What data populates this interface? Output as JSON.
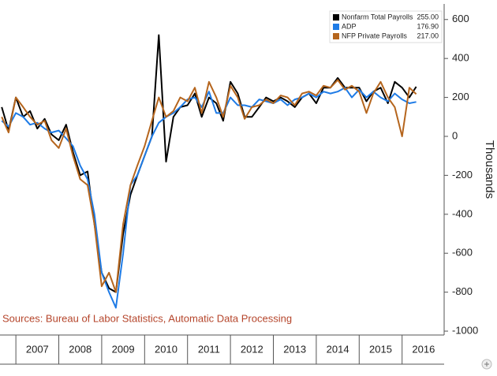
{
  "chart_data": {
    "type": "line",
    "y_label": "Thousands",
    "source": "Sources: Bureau of Labor Statistics, Automatic Data Processing",
    "x": [
      2006.67,
      2006.83,
      2007.0,
      2007.17,
      2007.33,
      2007.5,
      2007.67,
      2007.83,
      2008.0,
      2008.17,
      2008.33,
      2008.5,
      2008.67,
      2008.83,
      2009.0,
      2009.17,
      2009.33,
      2009.5,
      2009.67,
      2009.83,
      2010.0,
      2010.17,
      2010.33,
      2010.5,
      2010.67,
      2010.83,
      2011.0,
      2011.17,
      2011.33,
      2011.5,
      2011.67,
      2011.83,
      2012.0,
      2012.17,
      2012.33,
      2012.5,
      2012.67,
      2012.83,
      2013.0,
      2013.17,
      2013.33,
      2013.5,
      2013.67,
      2013.83,
      2014.0,
      2014.17,
      2014.33,
      2014.5,
      2014.67,
      2014.83,
      2015.0,
      2015.17,
      2015.33,
      2015.5,
      2015.67,
      2015.83,
      2016.0,
      2016.17,
      2016.33
    ],
    "xlim": [
      2006.63,
      2016.98
    ],
    "xticks": [
      {
        "value": 2007.5,
        "label": "2007"
      },
      {
        "value": 2008.5,
        "label": "2008"
      },
      {
        "value": 2009.5,
        "label": "2009"
      },
      {
        "value": 2010.5,
        "label": "2010"
      },
      {
        "value": 2011.5,
        "label": "2011"
      },
      {
        "value": 2012.5,
        "label": "2012"
      },
      {
        "value": 2013.5,
        "label": "2013"
      },
      {
        "value": 2014.5,
        "label": "2014"
      },
      {
        "value": 2015.5,
        "label": "2015"
      },
      {
        "value": 2016.5,
        "label": "2016"
      }
    ],
    "ylim": [
      -1020,
      680
    ],
    "yticks": [
      600,
      400,
      200,
      0,
      -200,
      -400,
      -600,
      -800,
      -1000
    ],
    "grid": false,
    "legend": "upper right",
    "series": [
      {
        "name": "Nonfarm Total Payrolls",
        "color": "#000000",
        "value_label": "255.00",
        "values": [
          150,
          30,
          200,
          100,
          130,
          40,
          90,
          10,
          -20,
          60,
          -80,
          -200,
          -180,
          -450,
          -700,
          -780,
          -800,
          -500,
          -300,
          -200,
          -100,
          0,
          520,
          -130,
          100,
          150,
          160,
          220,
          100,
          200,
          170,
          80,
          280,
          220,
          100,
          100,
          150,
          200,
          180,
          200,
          180,
          150,
          200,
          220,
          170,
          250,
          250,
          300,
          250,
          250,
          250,
          180,
          230,
          250,
          170,
          280,
          250,
          200,
          255
        ]
      },
      {
        "name": "ADP",
        "color": "#1e7be6",
        "value_label": "176.90",
        "values": [
          80,
          50,
          120,
          100,
          60,
          70,
          40,
          20,
          30,
          -10,
          -50,
          -150,
          -220,
          -400,
          -700,
          -800,
          -880,
          -600,
          -250,
          -200,
          -100,
          0,
          70,
          100,
          120,
          150,
          190,
          200,
          150,
          230,
          120,
          120,
          200,
          160,
          160,
          150,
          190,
          180,
          170,
          190,
          160,
          190,
          200,
          220,
          200,
          230,
          220,
          230,
          250,
          200,
          240,
          200,
          230,
          200,
          180,
          220,
          190,
          170,
          176.9
        ]
      },
      {
        "name": "NFP Private Payrolls",
        "color": "#b5651d",
        "value_label": "217.00",
        "values": [
          100,
          20,
          200,
          150,
          100,
          60,
          80,
          -20,
          -60,
          40,
          -100,
          -220,
          -250,
          -450,
          -770,
          -700,
          -800,
          -450,
          -250,
          -150,
          -50,
          80,
          200,
          100,
          130,
          200,
          180,
          250,
          120,
          280,
          200,
          100,
          260,
          200,
          90,
          150,
          160,
          190,
          170,
          210,
          200,
          160,
          220,
          230,
          210,
          260,
          250,
          290,
          240,
          260,
          230,
          120,
          220,
          280,
          200,
          150,
          0,
          250,
          217
        ]
      }
    ]
  }
}
